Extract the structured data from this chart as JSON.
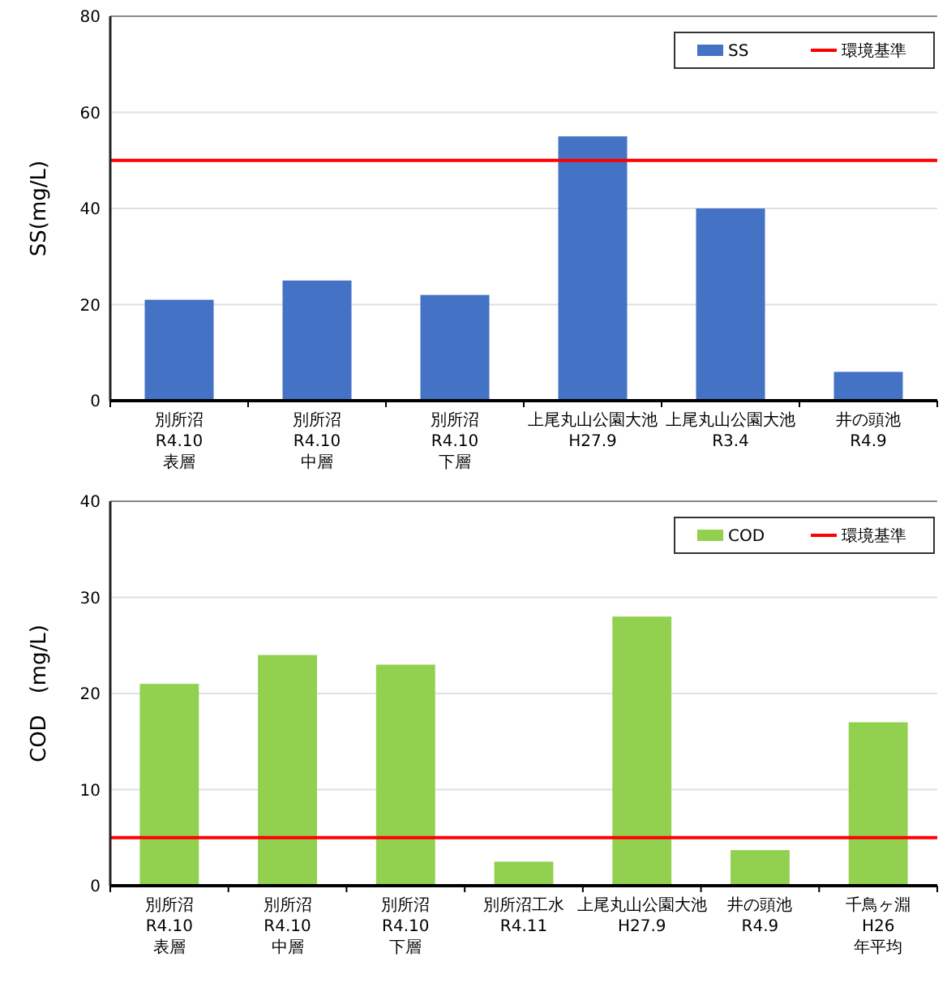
{
  "chart_data": [
    {
      "type": "bar",
      "ylabel": "SS(mg/L)",
      "categories": [
        "別所沼\nR4.10\n表層",
        "別所沼\nR4.10\n中層",
        "別所沼\nR4.10\n下層",
        "上尾丸山公園大池\nH27.9",
        "上尾丸山公園大池\nR3.4",
        "井の頭池\nR4.9"
      ],
      "series": [
        {
          "name": "SS",
          "color": "#4472c4",
          "values": [
            21,
            25,
            22,
            55,
            40,
            6
          ]
        }
      ],
      "ylim": [
        0,
        80
      ],
      "yticks": [
        0,
        20,
        40,
        60,
        80
      ],
      "grid": "y",
      "legend": "top right",
      "ref_lines": [
        {
          "axis": "y",
          "value": 50,
          "label": "環境基準",
          "color": "#ff0000"
        }
      ]
    },
    {
      "type": "bar",
      "ylabel": "COD　(mg/L)",
      "categories": [
        "別所沼\nR4.10\n表層",
        "別所沼\nR4.10\n中層",
        "別所沼\nR4.10\n下層",
        "別所沼工水\nR4.11",
        "上尾丸山公園大池\nH27.9",
        "井の頭池\nR4.9",
        "千鳥ヶ淵\nH26\n年平均"
      ],
      "series": [
        {
          "name": "COD",
          "color": "#92d050",
          "values": [
            21,
            24,
            23,
            2.5,
            28,
            3.7,
            17
          ]
        }
      ],
      "ylim": [
        0,
        40
      ],
      "yticks": [
        0,
        10,
        20,
        30,
        40
      ],
      "grid": "y",
      "legend": "top right",
      "ref_lines": [
        {
          "axis": "y",
          "value": 5,
          "label": "環境基準",
          "color": "#ff0000"
        }
      ]
    }
  ]
}
